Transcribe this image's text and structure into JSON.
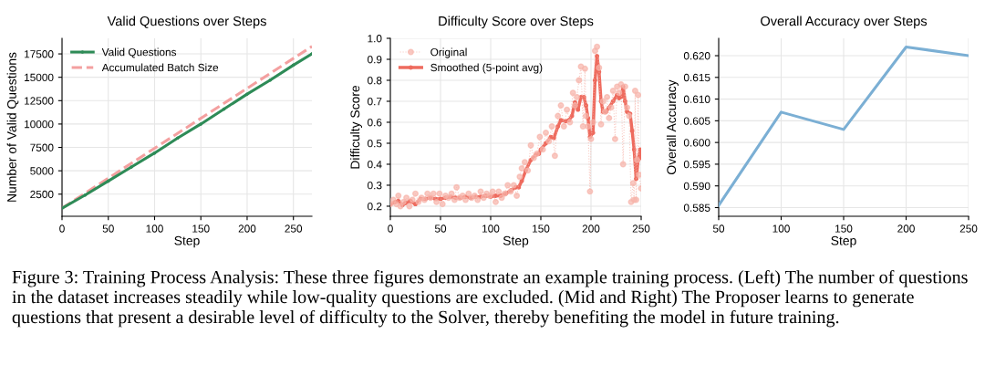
{
  "chart_data": [
    {
      "type": "line",
      "title": "Valid Questions over Steps",
      "xlabel": "Step",
      "ylabel": "Number of Valid Questions",
      "xlim": [
        0,
        270
      ],
      "xticks": [
        0,
        50,
        100,
        150,
        200,
        250
      ],
      "ylim": [
        135,
        19165
      ],
      "yticks": [
        2500,
        5000,
        7500,
        10000,
        12500,
        15000,
        17500
      ],
      "grid": true,
      "legend": "top left",
      "annotations": [
        "Figure 3: Training Process Analysis: These three figures demonstrate an example training process. (Left) The number of questions in the dataset increases steadily while low-quality questions are excluded. (Mid and Right) The Proposer learns to generate questions that present a desirable level of difficulty to the Solver, thereby benefiting the model in future training."
      ],
      "series": [
        {
          "name": "Valid Questions",
          "color": "#2e8b57",
          "marker": "circle",
          "line_style": "solid",
          "x": [
            0,
            25,
            50,
            75,
            100,
            125,
            150,
            175,
            200,
            225,
            250,
            270
          ],
          "values": [
            1000,
            2400,
            3900,
            5400,
            6900,
            8500,
            10000,
            11600,
            13200,
            14700,
            16300,
            17500
          ]
        },
        {
          "name": "Accumulated Batch Size",
          "color": "#f4a0a0",
          "marker": "none",
          "line_style": "dashed",
          "x": [
            0,
            270
          ],
          "values": [
            1000,
            18300
          ]
        }
      ]
    },
    {
      "type": "line",
      "title": "Difficulty Score over Steps",
      "xlabel": "Step",
      "ylabel": "Difficulty Score",
      "xlim": [
        0,
        250
      ],
      "xticks": [
        0,
        50,
        100,
        150,
        200,
        250
      ],
      "ylim": [
        0.152,
        1.0
      ],
      "yticks": [
        0.2,
        0.3,
        0.4,
        0.5,
        0.6,
        0.7,
        0.8,
        0.9,
        {
          "value": 1,
          "label": "1.0"
        }
      ],
      "grid": true,
      "legend": "top left",
      "series": [
        {
          "name": "Original",
          "color": "#f7b3aa",
          "marker": "circle",
          "line_style": "dotted",
          "x": [
            0,
            3,
            6,
            8,
            10,
            13,
            16,
            19,
            22,
            25,
            28,
            31,
            34,
            37,
            40,
            43,
            46,
            49,
            52,
            55,
            58,
            61,
            64,
            66,
            69,
            72,
            75,
            78,
            81,
            84,
            87,
            90,
            93,
            96,
            99,
            102,
            105,
            108,
            111,
            114,
            117,
            120,
            123,
            126,
            129,
            131,
            134,
            137,
            140,
            143,
            146,
            149,
            152,
            155,
            158,
            161,
            164,
            167,
            170,
            173,
            176,
            179,
            182,
            184,
            186,
            188,
            190,
            192,
            194,
            195,
            197,
            199,
            200,
            202,
            204,
            206,
            208,
            210,
            212,
            214,
            216,
            218,
            220,
            222,
            224,
            226,
            228,
            230,
            232,
            234,
            236,
            238,
            240,
            242,
            243,
            244,
            245,
            246,
            247,
            248,
            250
          ],
          "values": [
            0.21,
            0.23,
            0.21,
            0.25,
            0.2,
            0.22,
            0.24,
            0.2,
            0.23,
            0.26,
            0.22,
            0.24,
            0.23,
            0.26,
            0.24,
            0.26,
            0.22,
            0.26,
            0.21,
            0.25,
            0.24,
            0.26,
            0.23,
            0.29,
            0.24,
            0.25,
            0.23,
            0.26,
            0.24,
            0.25,
            0.23,
            0.27,
            0.24,
            0.26,
            0.25,
            0.27,
            0.22,
            0.27,
            0.24,
            0.26,
            0.3,
            0.27,
            0.3,
            0.25,
            0.34,
            0.38,
            0.41,
            0.37,
            0.49,
            0.43,
            0.45,
            0.53,
            0.47,
            0.55,
            0.51,
            0.58,
            0.44,
            0.63,
            0.68,
            0.58,
            0.66,
            0.6,
            0.74,
            0.68,
            0.72,
            0.8,
            0.865,
            0.58,
            0.855,
            0.63,
            0.58,
            0.27,
            0.52,
            0.6,
            0.94,
            0.96,
            0.86,
            0.59,
            0.7,
            0.65,
            0.72,
            0.62,
            0.67,
            0.75,
            0.52,
            0.77,
            0.74,
            0.78,
            0.4,
            0.77,
            0.67,
            0.63,
            0.22,
            0.31,
            0.23,
            0.75,
            0.23,
            0.42,
            0.73,
            0.35,
            0.285
          ]
        },
        {
          "name": "Smoothed (5-point avg)",
          "color": "#ee6b5e",
          "marker": "circle",
          "line_style": "solid",
          "x": [
            0,
            5,
            8,
            12,
            15,
            20,
            25,
            30,
            35,
            40,
            45,
            50,
            55,
            60,
            65,
            70,
            75,
            80,
            85,
            90,
            95,
            100,
            105,
            110,
            115,
            120,
            125,
            128,
            131,
            135,
            140,
            145,
            148,
            150,
            155,
            160,
            163,
            167,
            170,
            175,
            178,
            181,
            184,
            187,
            190,
            193,
            195,
            197,
            199,
            202,
            204,
            206,
            208,
            210,
            212,
            215,
            218,
            222,
            226,
            228,
            230,
            232,
            234,
            236,
            239,
            241,
            243,
            245,
            247,
            249,
            250
          ],
          "values": [
            0.21,
            0.22,
            0.225,
            0.205,
            0.215,
            0.225,
            0.21,
            0.235,
            0.235,
            0.24,
            0.235,
            0.235,
            0.24,
            0.245,
            0.24,
            0.24,
            0.245,
            0.24,
            0.245,
            0.245,
            0.25,
            0.245,
            0.25,
            0.25,
            0.26,
            0.275,
            0.29,
            0.29,
            0.32,
            0.37,
            0.42,
            0.445,
            0.45,
            0.47,
            0.5,
            0.53,
            0.525,
            0.58,
            0.61,
            0.605,
            0.61,
            0.63,
            0.695,
            0.66,
            0.72,
            0.72,
            0.68,
            0.62,
            0.53,
            0.55,
            0.8,
            0.915,
            0.84,
            0.7,
            0.65,
            0.65,
            0.67,
            0.7,
            0.73,
            0.715,
            0.72,
            0.77,
            0.7,
            0.65,
            0.64,
            0.56,
            0.47,
            0.33,
            0.42,
            0.47,
            0.43
          ]
        }
      ]
    },
    {
      "type": "line",
      "title": "Overall Accuracy over Steps",
      "xlabel": "Step",
      "ylabel": "Overall Accuracy",
      "xlim": [
        50,
        250
      ],
      "xticks": [
        50,
        100,
        150,
        200,
        250
      ],
      "ylim": [
        0.583,
        0.624
      ],
      "yticks": [
        {
          "value": 0.585,
          "label": "0.585"
        },
        {
          "value": 0.59,
          "label": "0.590"
        },
        {
          "value": 0.595,
          "label": "0.595"
        },
        {
          "value": 0.6,
          "label": "0.600"
        },
        {
          "value": 0.605,
          "label": "0.605"
        },
        {
          "value": 0.61,
          "label": "0.610"
        },
        {
          "value": 0.615,
          "label": "0.615"
        },
        {
          "value": 0.62,
          "label": "0.620"
        }
      ],
      "grid": true,
      "series": [
        {
          "color": "#7bafd4",
          "x": [
            50,
            100,
            150,
            200,
            250
          ],
          "values": [
            0.5855,
            0.607,
            0.603,
            0.622,
            0.62
          ]
        }
      ]
    }
  ]
}
